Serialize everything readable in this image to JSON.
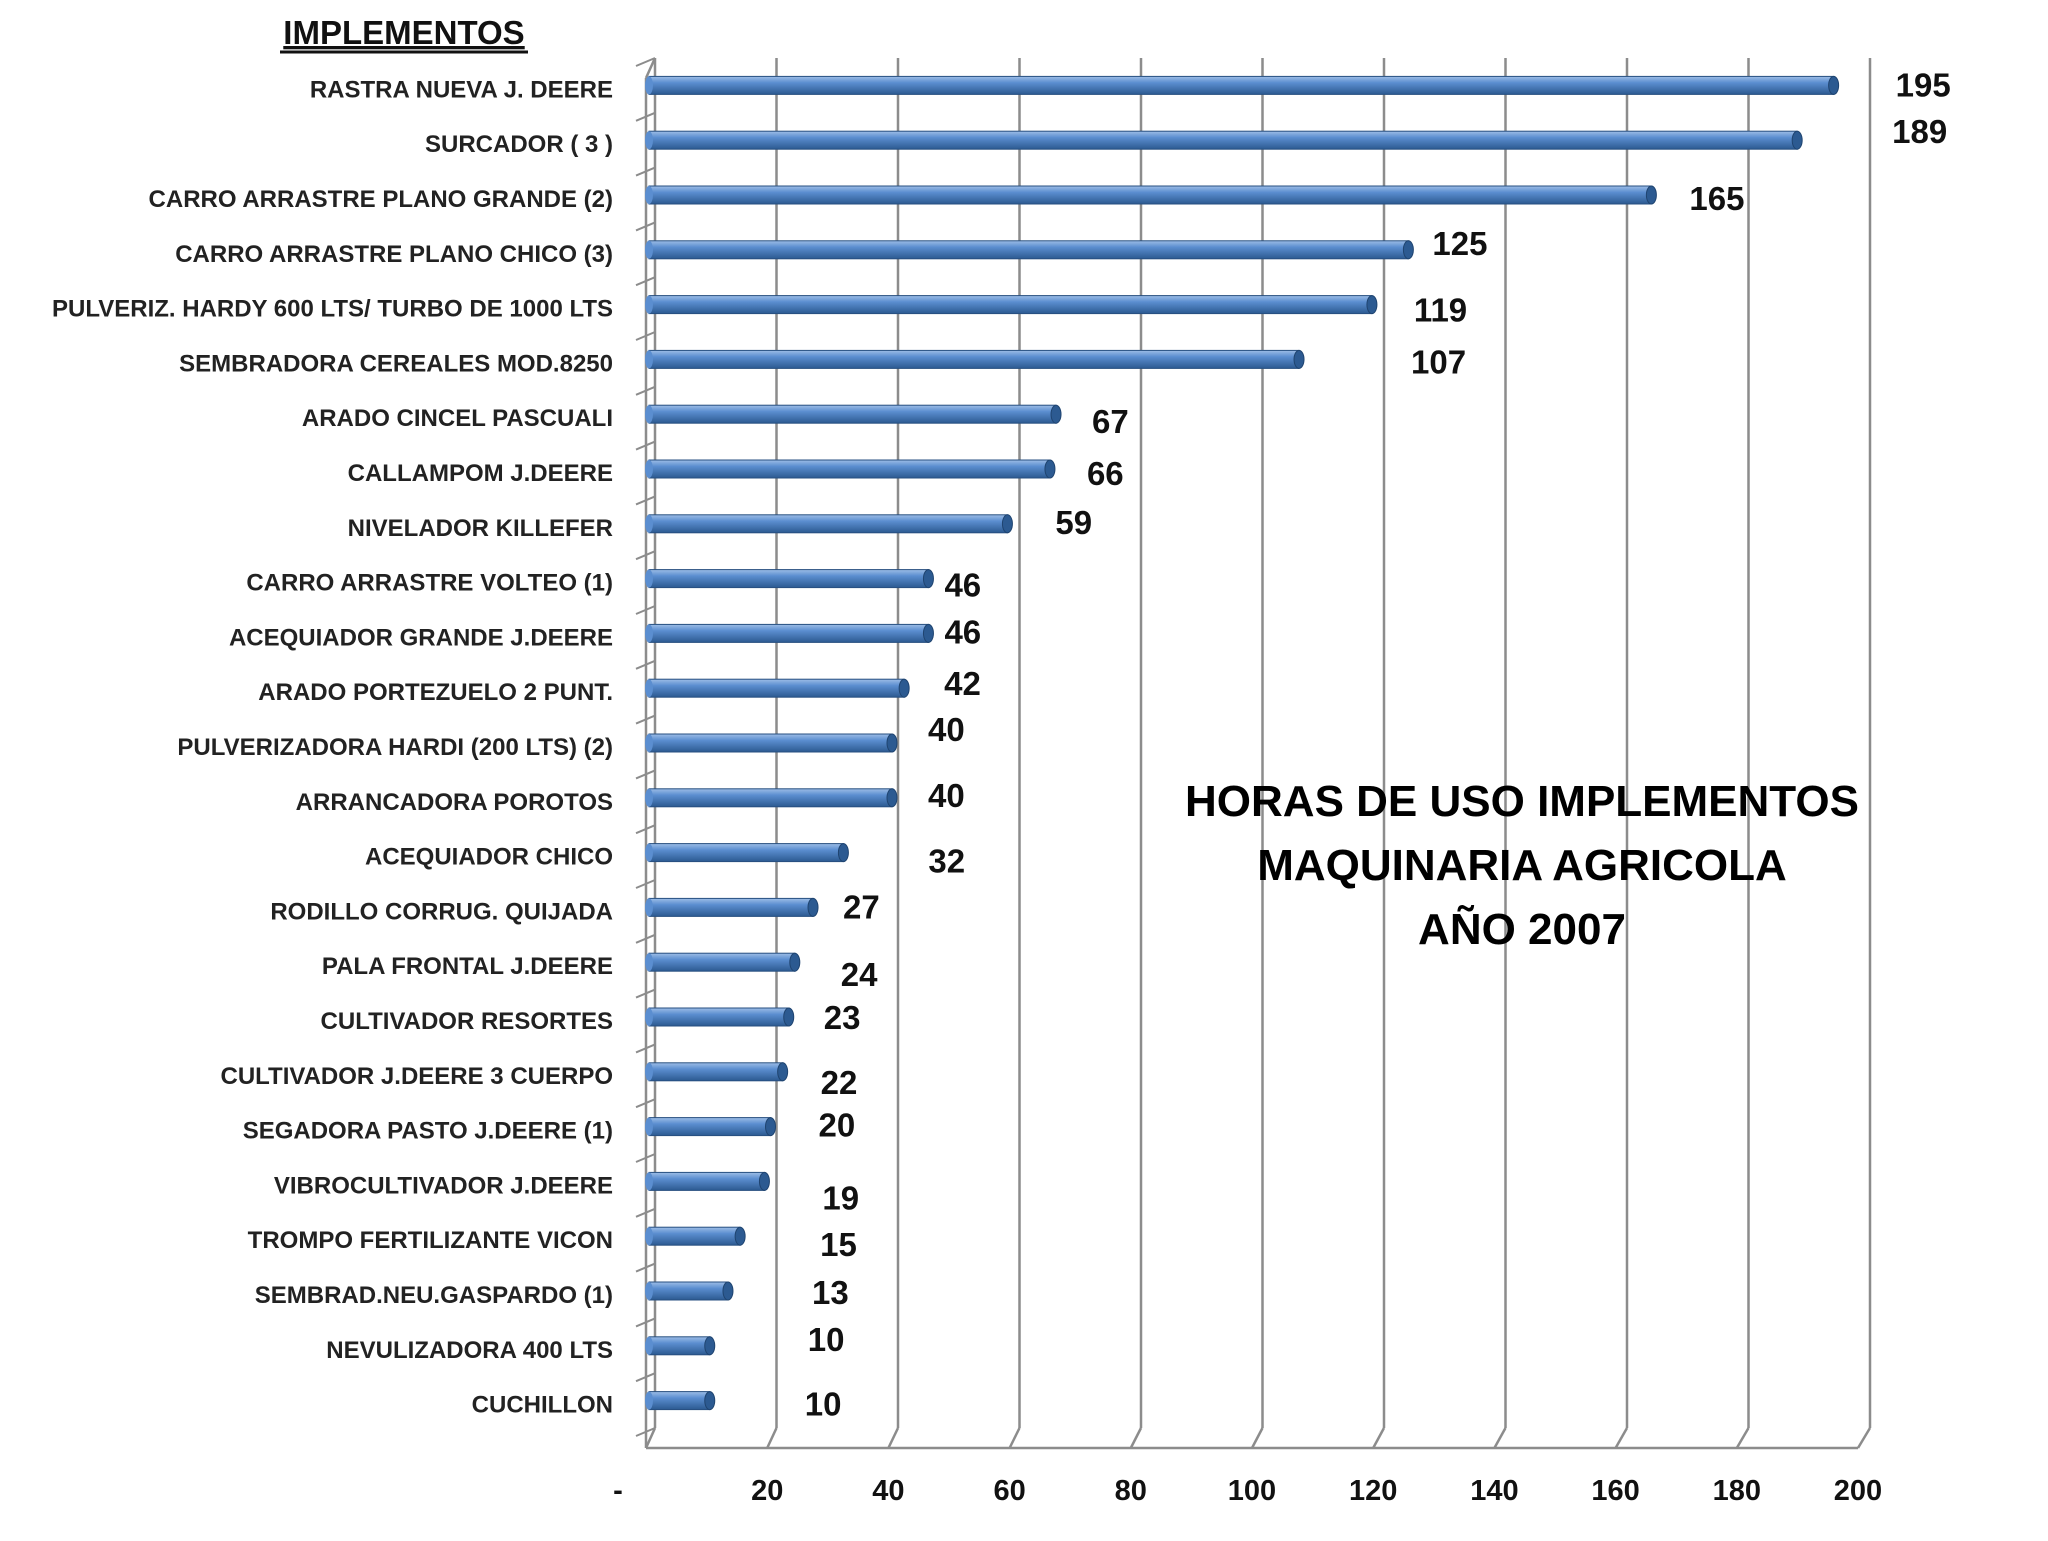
{
  "chart_data": {
    "type": "bar",
    "orientation": "horizontal",
    "heading": "IMPLEMENTOS",
    "title_lines": [
      "HORAS DE USO IMPLEMENTOS",
      "MAQUINARIA  AGRICOLA",
      "AÑO  2007"
    ],
    "categories": [
      "RASTRA NUEVA J. DEERE",
      "SURCADOR ( 3 )",
      "CARRO ARRASTRE PLANO GRANDE (2)",
      "CARRO ARRASTRE PLANO CHICO (3)",
      "PULVERIZ. HARDY 600 LTS/ TURBO DE 1000 LTS",
      "SEMBRADORA CEREALES MOD.8250",
      "ARADO CINCEL PASCUALI",
      "CALLAMPOM J.DEERE",
      "NIVELADOR KILLEFER",
      "CARRO ARRASTRE VOLTEO  (1)",
      "ACEQUIADOR GRANDE J.DEERE",
      "ARADO PORTEZUELO 2 PUNT.",
      "PULVERIZADORA HARDI (200 LTS) (2)",
      "ARRANCADORA POROTOS",
      "ACEQUIADOR  CHICO",
      "RODILLO CORRUG. QUIJADA",
      "PALA FRONTAL J.DEERE",
      "CULTIVADOR RESORTES",
      "CULTIVADOR  J.DEERE 3 CUERPO",
      "SEGADORA PASTO J.DEERE (1)",
      "VIBROCULTIVADOR J.DEERE",
      "TROMPO FERTILIZANTE VICON",
      "SEMBRAD.NEU.GASPARDO (1)",
      "NEVULIZADORA 400 LTS",
      "CUCHILLON"
    ],
    "values": [
      195,
      189,
      165,
      125,
      119,
      107,
      67,
      66,
      59,
      46,
      46,
      42,
      40,
      40,
      32,
      27,
      24,
      23,
      22,
      20,
      19,
      15,
      13,
      10,
      10
    ],
    "value_labels": [
      "195",
      "189",
      "165",
      "125",
      "119",
      "107",
      "67",
      "66",
      "59",
      "46",
      "46",
      "42",
      "40",
      "40",
      "32",
      "27",
      "24",
      "23",
      "22",
      "20",
      "19",
      "15",
      "13",
      "10",
      "10"
    ],
    "x_ticks": [
      "-",
      "20",
      "40",
      "60",
      "80",
      "100",
      "120",
      "140",
      "160",
      "180",
      "200"
    ],
    "xlim": [
      0,
      200
    ],
    "grid": true,
    "bar_color": "#4f81bd",
    "bar_color_dark": "#2c5a91"
  }
}
